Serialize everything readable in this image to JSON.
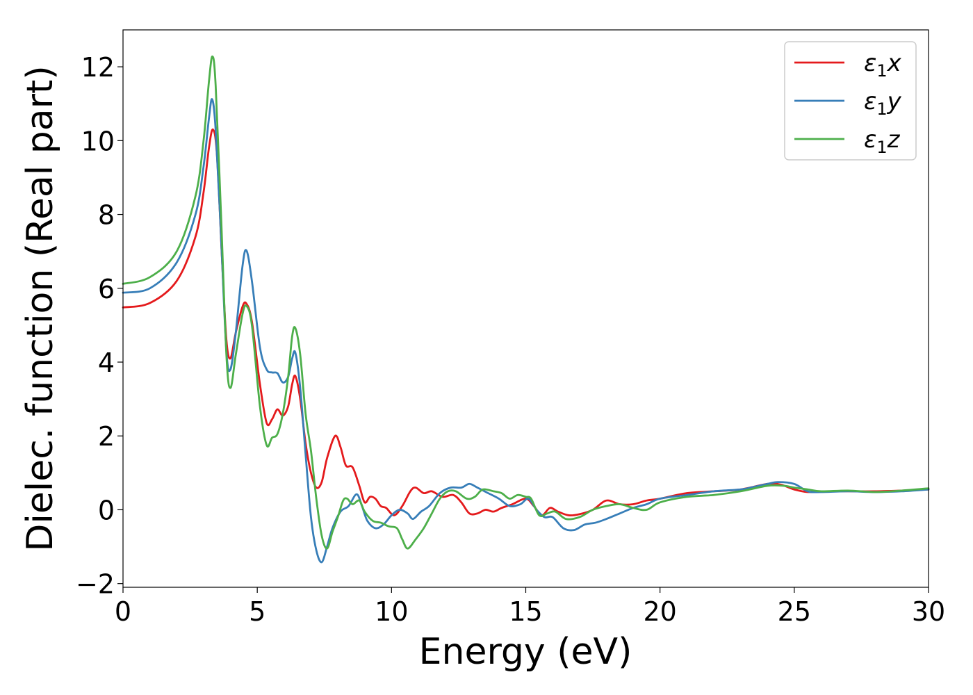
{
  "chart_data": {
    "type": "line",
    "title": "",
    "xlabel": "Energy (eV)",
    "ylabel": "Dielec. function (Real part)",
    "xlim": [
      0,
      30
    ],
    "ylim": [
      -2.1,
      13
    ],
    "xticks": [
      0,
      5,
      10,
      15,
      20,
      25,
      30
    ],
    "yticks": [
      -2,
      0,
      2,
      4,
      6,
      8,
      10,
      12
    ],
    "xtick_labels": [
      "0",
      "5",
      "10",
      "15",
      "20",
      "25",
      "30"
    ],
    "ytick_labels": [
      "−2",
      "0",
      "2",
      "4",
      "6",
      "8",
      "10",
      "12"
    ],
    "grid": false,
    "legend_position": "top-right",
    "series": [
      {
        "name": "ε1x",
        "legend_base": "ε",
        "legend_sub": "1",
        "legend_suffix": "x",
        "color": "#e41a1c",
        "points": [
          [
            0,
            5.48
          ],
          [
            1.0,
            5.6
          ],
          [
            2.0,
            6.2
          ],
          [
            2.7,
            7.4
          ],
          [
            3.0,
            8.6
          ],
          [
            3.2,
            9.8
          ],
          [
            3.35,
            10.3
          ],
          [
            3.5,
            9.6
          ],
          [
            3.7,
            6.6
          ],
          [
            3.85,
            4.6
          ],
          [
            4.0,
            4.1
          ],
          [
            4.2,
            4.8
          ],
          [
            4.45,
            5.5
          ],
          [
            4.6,
            5.58
          ],
          [
            4.8,
            5.1
          ],
          [
            5.1,
            3.4
          ],
          [
            5.35,
            2.35
          ],
          [
            5.55,
            2.45
          ],
          [
            5.75,
            2.72
          ],
          [
            5.95,
            2.55
          ],
          [
            6.15,
            2.8
          ],
          [
            6.3,
            3.4
          ],
          [
            6.42,
            3.62
          ],
          [
            6.6,
            3.0
          ],
          [
            6.8,
            1.8
          ],
          [
            7.0,
            1.0
          ],
          [
            7.2,
            0.6
          ],
          [
            7.4,
            0.75
          ],
          [
            7.6,
            1.4
          ],
          [
            7.9,
            2.0
          ],
          [
            8.1,
            1.7
          ],
          [
            8.3,
            1.2
          ],
          [
            8.55,
            1.15
          ],
          [
            8.8,
            0.65
          ],
          [
            9.0,
            0.2
          ],
          [
            9.2,
            0.35
          ],
          [
            9.4,
            0.3
          ],
          [
            9.6,
            0.1
          ],
          [
            9.8,
            0.05
          ],
          [
            10.1,
            -0.15
          ],
          [
            10.4,
            0.1
          ],
          [
            10.7,
            0.5
          ],
          [
            10.9,
            0.6
          ],
          [
            11.2,
            0.45
          ],
          [
            11.5,
            0.5
          ],
          [
            11.9,
            0.35
          ],
          [
            12.3,
            0.4
          ],
          [
            12.6,
            0.2
          ],
          [
            12.9,
            -0.1
          ],
          [
            13.2,
            -0.1
          ],
          [
            13.5,
            0.0
          ],
          [
            13.8,
            -0.05
          ],
          [
            14.1,
            0.05
          ],
          [
            14.5,
            0.15
          ],
          [
            15.0,
            0.3
          ],
          [
            15.3,
            0.1
          ],
          [
            15.6,
            -0.15
          ],
          [
            15.9,
            0.05
          ],
          [
            16.2,
            -0.05
          ],
          [
            16.6,
            -0.15
          ],
          [
            17.0,
            -0.12
          ],
          [
            17.5,
            0.0
          ],
          [
            18.0,
            0.25
          ],
          [
            18.5,
            0.15
          ],
          [
            19.0,
            0.15
          ],
          [
            19.5,
            0.25
          ],
          [
            20.0,
            0.3
          ],
          [
            21.0,
            0.45
          ],
          [
            22.0,
            0.5
          ],
          [
            23.0,
            0.55
          ],
          [
            24.0,
            0.7
          ],
          [
            24.5,
            0.68
          ],
          [
            25.0,
            0.55
          ],
          [
            25.5,
            0.48
          ],
          [
            26.0,
            0.5
          ],
          [
            27.0,
            0.5
          ],
          [
            28.0,
            0.5
          ],
          [
            29.0,
            0.52
          ],
          [
            30.0,
            0.55
          ]
        ]
      },
      {
        "name": "ε1y",
        "legend_base": "ε",
        "legend_sub": "1",
        "legend_suffix": "y",
        "color": "#377eb8",
        "points": [
          [
            0,
            5.88
          ],
          [
            1.0,
            6.0
          ],
          [
            2.0,
            6.7
          ],
          [
            2.7,
            8.0
          ],
          [
            3.0,
            9.3
          ],
          [
            3.2,
            10.6
          ],
          [
            3.32,
            11.12
          ],
          [
            3.45,
            10.3
          ],
          [
            3.65,
            7.4
          ],
          [
            3.85,
            4.3
          ],
          [
            4.0,
            3.8
          ],
          [
            4.2,
            4.8
          ],
          [
            4.45,
            6.6
          ],
          [
            4.6,
            7.02
          ],
          [
            4.8,
            6.2
          ],
          [
            5.1,
            4.4
          ],
          [
            5.35,
            3.8
          ],
          [
            5.55,
            3.72
          ],
          [
            5.75,
            3.7
          ],
          [
            5.95,
            3.45
          ],
          [
            6.15,
            3.6
          ],
          [
            6.3,
            4.1
          ],
          [
            6.42,
            4.25
          ],
          [
            6.6,
            3.3
          ],
          [
            6.8,
            1.5
          ],
          [
            7.0,
            -0.2
          ],
          [
            7.2,
            -1.1
          ],
          [
            7.4,
            -1.42
          ],
          [
            7.6,
            -1.0
          ],
          [
            7.8,
            -0.5
          ],
          [
            8.1,
            -0.05
          ],
          [
            8.4,
            0.1
          ],
          [
            8.7,
            0.42
          ],
          [
            8.9,
            0.1
          ],
          [
            9.1,
            -0.3
          ],
          [
            9.4,
            -0.5
          ],
          [
            9.7,
            -0.4
          ],
          [
            10.0,
            -0.15
          ],
          [
            10.3,
            0.0
          ],
          [
            10.6,
            -0.1
          ],
          [
            10.8,
            -0.25
          ],
          [
            11.1,
            -0.05
          ],
          [
            11.4,
            0.1
          ],
          [
            11.8,
            0.45
          ],
          [
            12.2,
            0.6
          ],
          [
            12.6,
            0.6
          ],
          [
            12.9,
            0.7
          ],
          [
            13.2,
            0.6
          ],
          [
            13.6,
            0.45
          ],
          [
            14.0,
            0.3
          ],
          [
            14.4,
            0.1
          ],
          [
            14.8,
            0.15
          ],
          [
            15.1,
            0.3
          ],
          [
            15.4,
            0.0
          ],
          [
            15.7,
            -0.2
          ],
          [
            16.0,
            -0.2
          ],
          [
            16.4,
            -0.5
          ],
          [
            16.8,
            -0.55
          ],
          [
            17.2,
            -0.4
          ],
          [
            17.6,
            -0.35
          ],
          [
            18.0,
            -0.25
          ],
          [
            18.5,
            -0.1
          ],
          [
            19.0,
            0.05
          ],
          [
            19.5,
            0.15
          ],
          [
            20.0,
            0.3
          ],
          [
            21.0,
            0.4
          ],
          [
            22.0,
            0.5
          ],
          [
            23.0,
            0.55
          ],
          [
            23.5,
            0.62
          ],
          [
            24.0,
            0.7
          ],
          [
            24.4,
            0.75
          ],
          [
            25.0,
            0.7
          ],
          [
            25.5,
            0.5
          ],
          [
            26.0,
            0.48
          ],
          [
            27.0,
            0.5
          ],
          [
            28.0,
            0.48
          ],
          [
            29.0,
            0.5
          ],
          [
            30.0,
            0.55
          ]
        ]
      },
      {
        "name": "ε1z",
        "legend_base": "ε",
        "legend_sub": "1",
        "legend_suffix": "z",
        "color": "#4daf4a",
        "points": [
          [
            0,
            6.12
          ],
          [
            1.0,
            6.3
          ],
          [
            2.0,
            7.0
          ],
          [
            2.7,
            8.5
          ],
          [
            3.0,
            10.0
          ],
          [
            3.2,
            11.6
          ],
          [
            3.33,
            12.28
          ],
          [
            3.45,
            11.5
          ],
          [
            3.65,
            8.0
          ],
          [
            3.85,
            4.2
          ],
          [
            4.0,
            3.3
          ],
          [
            4.2,
            4.2
          ],
          [
            4.45,
            5.3
          ],
          [
            4.6,
            5.52
          ],
          [
            4.8,
            5.0
          ],
          [
            5.1,
            2.8
          ],
          [
            5.35,
            1.75
          ],
          [
            5.55,
            1.95
          ],
          [
            5.75,
            2.05
          ],
          [
            5.95,
            2.6
          ],
          [
            6.15,
            3.6
          ],
          [
            6.3,
            4.7
          ],
          [
            6.42,
            4.92
          ],
          [
            6.6,
            4.2
          ],
          [
            6.8,
            2.6
          ],
          [
            7.0,
            1.6
          ],
          [
            7.2,
            0.3
          ],
          [
            7.4,
            -0.7
          ],
          [
            7.6,
            -1.05
          ],
          [
            7.8,
            -0.6
          ],
          [
            8.0,
            -0.2
          ],
          [
            8.2,
            0.25
          ],
          [
            8.35,
            0.3
          ],
          [
            8.55,
            0.15
          ],
          [
            8.8,
            0.25
          ],
          [
            9.0,
            -0.05
          ],
          [
            9.3,
            -0.3
          ],
          [
            9.6,
            -0.35
          ],
          [
            9.9,
            -0.45
          ],
          [
            10.2,
            -0.5
          ],
          [
            10.4,
            -0.8
          ],
          [
            10.6,
            -1.05
          ],
          [
            10.9,
            -0.8
          ],
          [
            11.2,
            -0.5
          ],
          [
            11.5,
            -0.1
          ],
          [
            11.8,
            0.3
          ],
          [
            12.1,
            0.5
          ],
          [
            12.4,
            0.5
          ],
          [
            12.8,
            0.3
          ],
          [
            13.1,
            0.35
          ],
          [
            13.4,
            0.55
          ],
          [
            13.8,
            0.5
          ],
          [
            14.1,
            0.45
          ],
          [
            14.4,
            0.3
          ],
          [
            14.7,
            0.4
          ],
          [
            15.0,
            0.35
          ],
          [
            15.2,
            0.3
          ],
          [
            15.5,
            -0.15
          ],
          [
            15.8,
            -0.1
          ],
          [
            16.1,
            -0.05
          ],
          [
            16.5,
            -0.25
          ],
          [
            17.0,
            -0.2
          ],
          [
            17.5,
            0.0
          ],
          [
            18.0,
            0.1
          ],
          [
            18.5,
            0.15
          ],
          [
            19.0,
            0.05
          ],
          [
            19.5,
            0.0
          ],
          [
            20.0,
            0.2
          ],
          [
            21.0,
            0.35
          ],
          [
            22.0,
            0.4
          ],
          [
            23.0,
            0.5
          ],
          [
            24.0,
            0.65
          ],
          [
            24.6,
            0.65
          ],
          [
            25.0,
            0.6
          ],
          [
            25.5,
            0.55
          ],
          [
            26.0,
            0.5
          ],
          [
            27.0,
            0.52
          ],
          [
            28.0,
            0.48
          ],
          [
            29.0,
            0.52
          ],
          [
            30.0,
            0.58
          ]
        ]
      }
    ]
  }
}
